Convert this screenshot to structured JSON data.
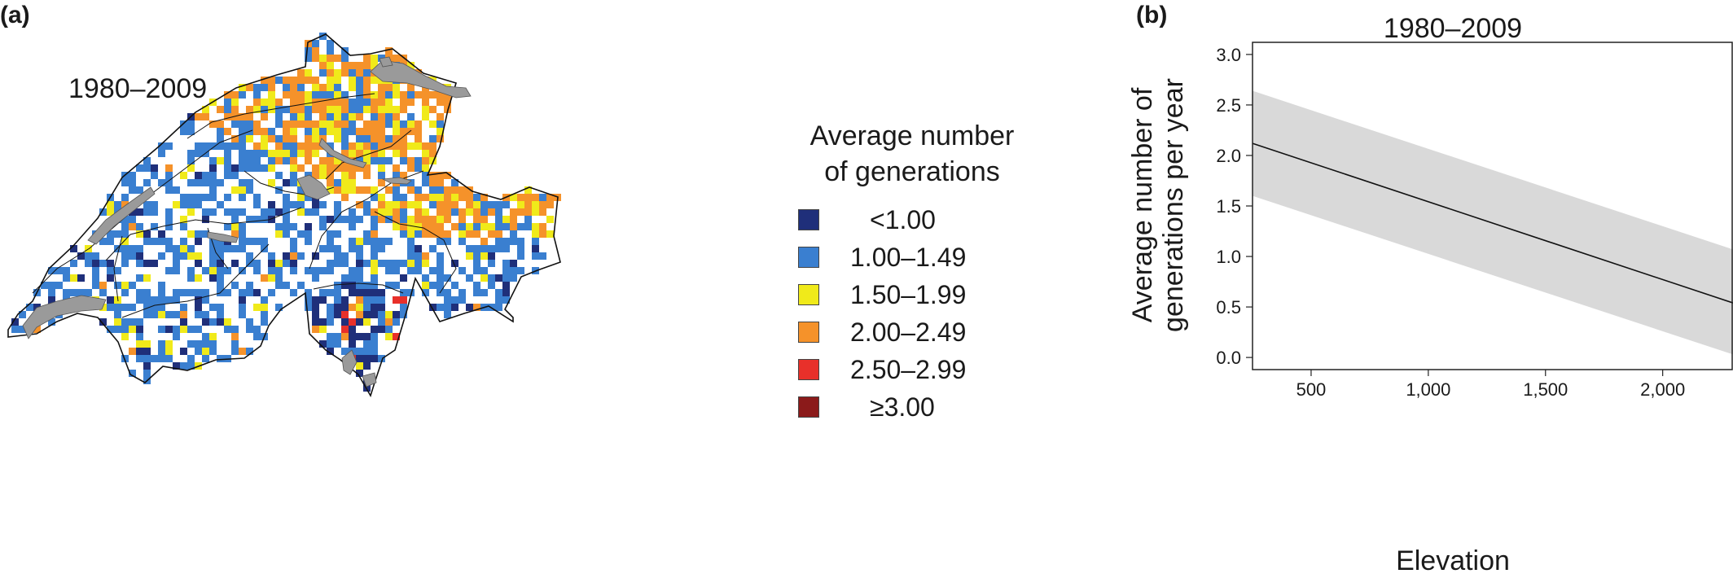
{
  "panel_a": {
    "label": "(a)",
    "map_title": "1980–2009",
    "legend": {
      "title_line1": "Average number",
      "title_line2": "of generations",
      "items": [
        {
          "label": "<1.00",
          "color": "#1f2f7a"
        },
        {
          "label": "1.00–1.49",
          "color": "#3a7fd0"
        },
        {
          "label": "1.50–1.99",
          "color": "#f0ea1a"
        },
        {
          "label": "2.00–2.49",
          "color": "#f5922a"
        },
        {
          "label": "2.50–2.99",
          "color": "#e8302a"
        },
        {
          "label": "≥3.00",
          "color": "#8b1a1a"
        }
      ]
    },
    "lake_color": "#9a9a9a"
  },
  "panel_b": {
    "label": "(b)"
  },
  "chart_data": {
    "type": "line",
    "title": "1980–2009",
    "xlabel": "Elevation",
    "ylabel_line1": "Average number of",
    "ylabel_line2": "generations per year",
    "xlim": [
      250,
      2300
    ],
    "ylim": [
      -0.12,
      3.12
    ],
    "x_ticks": [
      {
        "value": 500,
        "label": "500"
      },
      {
        "value": 1000,
        "label": "1,000"
      },
      {
        "value": 1500,
        "label": "1,500"
      },
      {
        "value": 2000,
        "label": "2,000"
      }
    ],
    "y_ticks": [
      {
        "value": 0.0,
        "label": "0.0"
      },
      {
        "value": 0.5,
        "label": "0.5"
      },
      {
        "value": 1.0,
        "label": "1.0"
      },
      {
        "value": 1.5,
        "label": "1.5"
      },
      {
        "value": 2.0,
        "label": "2.0"
      },
      {
        "value": 2.5,
        "label": "2.5"
      },
      {
        "value": 3.0,
        "label": "3.0"
      }
    ],
    "series": [
      {
        "x": [
          250,
          2300
        ],
        "y": [
          2.12,
          0.54
        ]
      }
    ],
    "confidence_band": {
      "x": [
        250,
        2300
      ],
      "upper": [
        2.64,
        1.07
      ],
      "lower": [
        1.6,
        0.03
      ],
      "color": "#d9d9d9"
    },
    "grid": false
  }
}
